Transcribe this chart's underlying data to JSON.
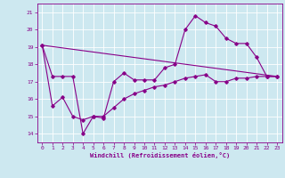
{
  "background_color": "#cde8f0",
  "grid_color": "#ffffff",
  "line_color": "#880088",
  "xlabel": "Windchill (Refroidissement éolien,°C)",
  "xlim": [
    -0.5,
    23.5
  ],
  "ylim": [
    13.5,
    21.5
  ],
  "yticks": [
    14,
    15,
    16,
    17,
    18,
    19,
    20,
    21
  ],
  "xticks": [
    0,
    1,
    2,
    3,
    4,
    5,
    6,
    7,
    8,
    9,
    10,
    11,
    12,
    13,
    14,
    15,
    16,
    17,
    18,
    19,
    20,
    21,
    22,
    23
  ],
  "series1_x": [
    0,
    1,
    2,
    3,
    4,
    5,
    6,
    7,
    8,
    9,
    10,
    11,
    12,
    13,
    14,
    15,
    16,
    17,
    18,
    19,
    20,
    21,
    22,
    23
  ],
  "series1_y": [
    19.1,
    17.3,
    17.3,
    17.3,
    14.0,
    15.0,
    14.9,
    17.0,
    17.5,
    17.1,
    17.1,
    17.1,
    17.8,
    18.0,
    20.0,
    20.8,
    20.4,
    20.2,
    19.5,
    19.2,
    19.2,
    18.4,
    17.3,
    17.3
  ],
  "series2_x": [
    0,
    1,
    2,
    3,
    4,
    5,
    6,
    7,
    8,
    9,
    10,
    11,
    12,
    13,
    14,
    15,
    16,
    17,
    18,
    19,
    20,
    21,
    22,
    23
  ],
  "series2_y": [
    19.1,
    15.6,
    16.1,
    15.0,
    14.8,
    15.0,
    15.0,
    15.5,
    16.0,
    16.3,
    16.5,
    16.7,
    16.8,
    17.0,
    17.2,
    17.3,
    17.4,
    17.0,
    17.0,
    17.2,
    17.2,
    17.3,
    17.3,
    17.3
  ],
  "series3_x": [
    0,
    23
  ],
  "series3_y": [
    19.1,
    17.3
  ],
  "marker_size": 1.8,
  "line_width": 0.8,
  "tick_fontsize": 4.5,
  "xlabel_fontsize": 5.0
}
